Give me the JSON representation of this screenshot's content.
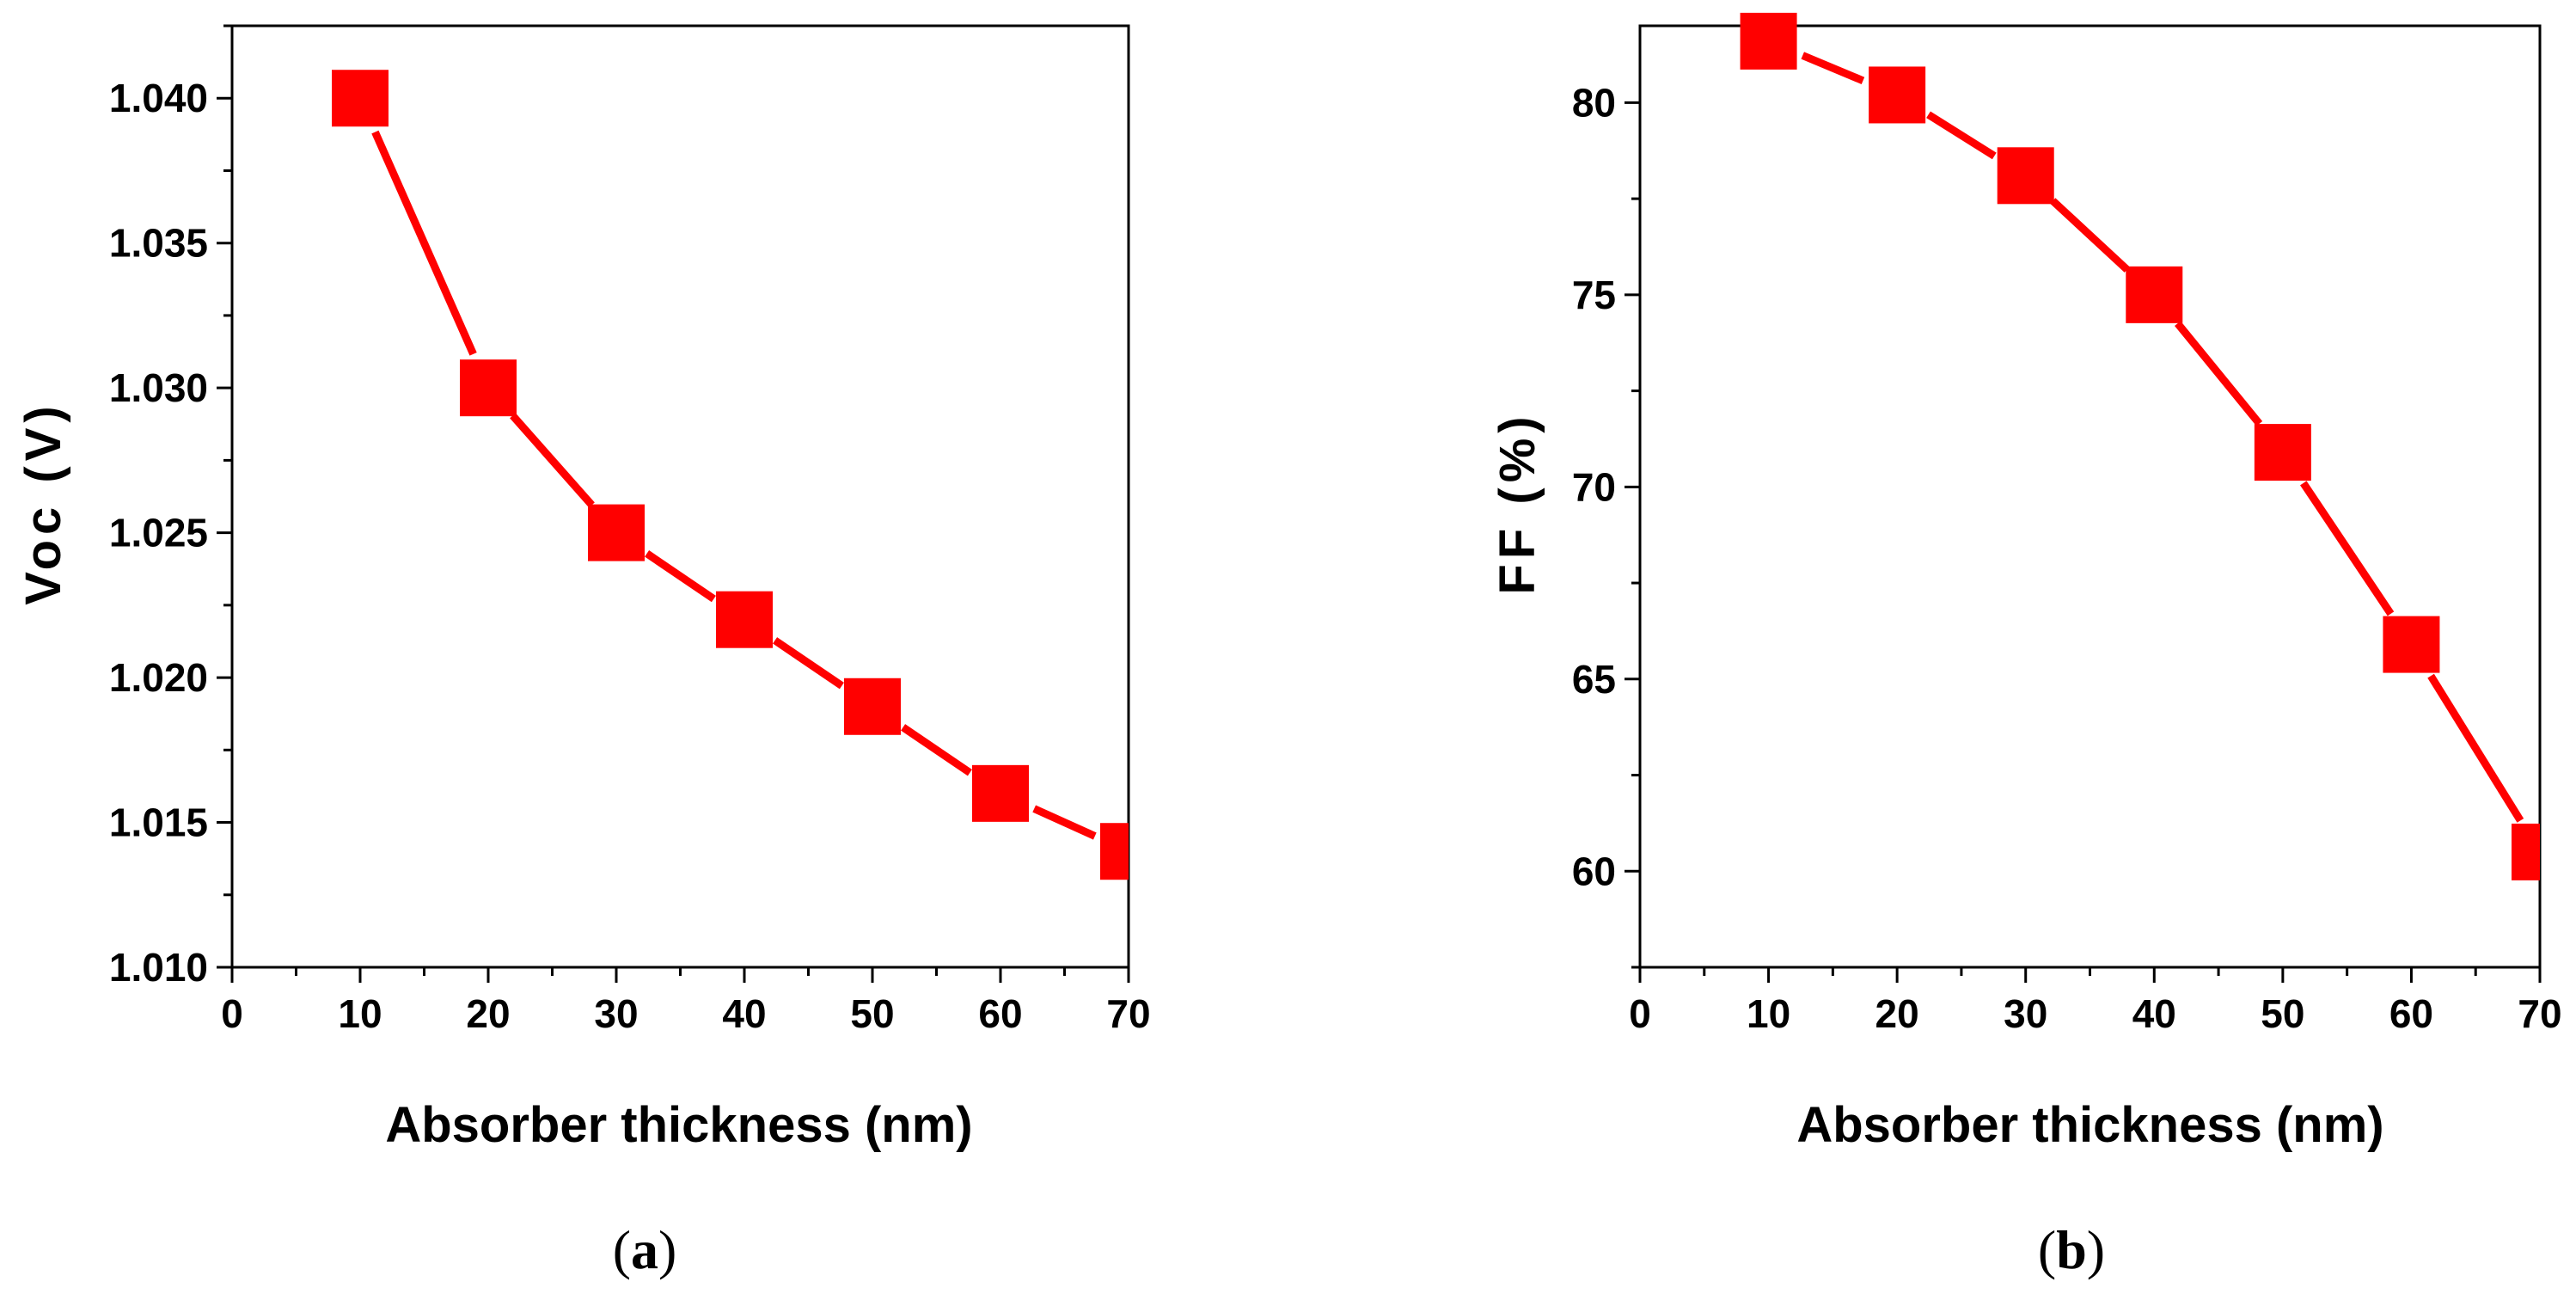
{
  "chart_data": [
    {
      "panel": "a",
      "type": "line",
      "markers": "square",
      "color": "#ff0000",
      "xlabel": "Absorber thickness (nm)",
      "ylabel": "Voc (V)",
      "xlim": [
        0,
        70
      ],
      "ylim": [
        1.01,
        1.0425
      ],
      "xticks": [
        0,
        10,
        20,
        30,
        40,
        50,
        60,
        70
      ],
      "xtick_labels": [
        "0",
        "10",
        "20",
        "30",
        "40",
        "50",
        "60",
        "70"
      ],
      "yticks": [
        1.01,
        1.015,
        1.02,
        1.025,
        1.03,
        1.035,
        1.04
      ],
      "ytick_labels": [
        "1.010",
        "1.015",
        "1.020",
        "1.025",
        "1.030",
        "1.035",
        "1.040"
      ],
      "series": [
        {
          "name": "Voc",
          "x": [
            10,
            20,
            30,
            40,
            50,
            60,
            70
          ],
          "values": [
            1.04,
            1.03,
            1.025,
            1.022,
            1.019,
            1.016,
            1.014
          ]
        }
      ],
      "caption_open": "(",
      "caption_letter": "a",
      "caption_close": ")"
    },
    {
      "panel": "b",
      "type": "line",
      "markers": "square",
      "color": "#ff0000",
      "xlabel": "Absorber thickness (nm)",
      "ylabel": "FF (%)",
      "xlim": [
        0,
        70
      ],
      "ylim": [
        57.5,
        82.0
      ],
      "xticks": [
        0,
        10,
        20,
        30,
        40,
        50,
        60,
        70
      ],
      "xtick_labels": [
        "0",
        "10",
        "20",
        "30",
        "40",
        "50",
        "60",
        "70"
      ],
      "yticks": [
        60,
        65,
        70,
        75,
        80
      ],
      "ytick_labels": [
        "60",
        "65",
        "70",
        "75",
        "80"
      ],
      "series": [
        {
          "name": "FF",
          "x": [
            10,
            20,
            30,
            40,
            50,
            60,
            70
          ],
          "values": [
            81.6,
            80.2,
            78.1,
            75.0,
            70.9,
            65.9,
            60.5
          ]
        }
      ],
      "caption_open": "(",
      "caption_letter": "b",
      "caption_close": ")"
    }
  ]
}
